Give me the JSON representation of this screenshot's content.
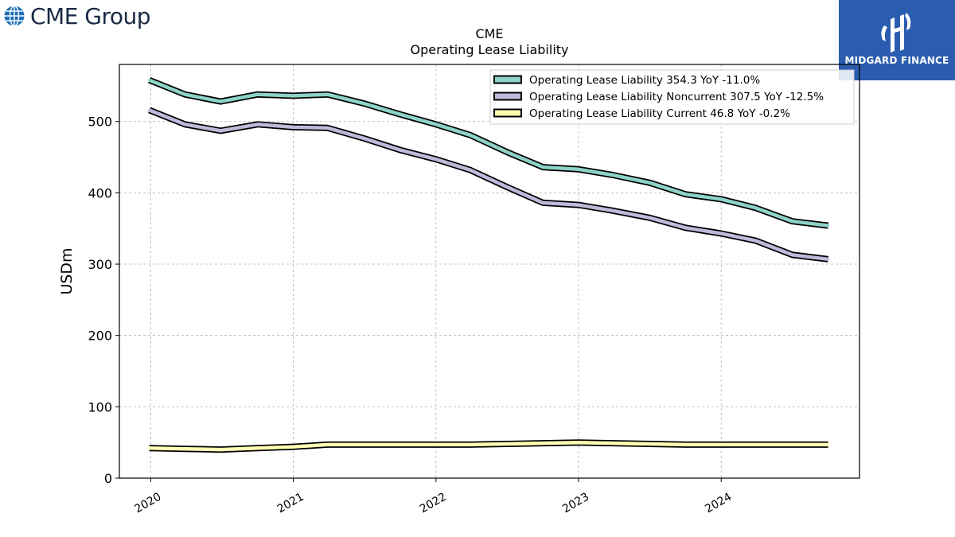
{
  "branding": {
    "left_logo_text": "CME Group",
    "right_logo_text": "MIDGARD FINANCE",
    "right_logo_bg": "#2a5db0"
  },
  "chart_data": {
    "type": "line",
    "title": "CME",
    "subtitle": "Operating Lease Liability",
    "ylabel": "USDm",
    "xlabel": "",
    "xlim": [
      2019.78,
      2024.97
    ],
    "ylim": [
      0,
      580
    ],
    "yticks": [
      0,
      100,
      200,
      300,
      400,
      500
    ],
    "xticks": [
      "2020",
      "2021",
      "2022",
      "2023",
      "2024"
    ],
    "grid": true,
    "legend_position": "top-right",
    "x": [
      2019.99,
      2020.24,
      2020.49,
      2020.75,
      2021.0,
      2021.24,
      2021.5,
      2021.75,
      2022.0,
      2022.24,
      2022.5,
      2022.75,
      2023.0,
      2023.24,
      2023.5,
      2023.75,
      2024.0,
      2024.24,
      2024.5,
      2024.75
    ],
    "series": [
      {
        "name": "Operating Lease Liability  354.3 YoY -11.0%",
        "color": "#8dd3c7",
        "values": [
          558,
          538,
          528,
          538,
          536,
          538,
          525,
          510,
          496,
          481,
          457,
          436,
          433,
          425,
          414,
          398,
          391,
          379,
          360,
          354
        ]
      },
      {
        "name": "Operating Lease Liability Noncurrent  307.5 YoY -12.5%",
        "color": "#bebada",
        "values": [
          516,
          496,
          487,
          496,
          492,
          491,
          476,
          460,
          447,
          432,
          408,
          386,
          383,
          375,
          365,
          351,
          343,
          333,
          313,
          307
        ]
      },
      {
        "name": "Operating Lease Liability Current  46.8 YoY -0.2%",
        "color": "#ffffb3",
        "values": [
          42,
          41,
          40,
          42,
          44,
          47,
          47,
          47,
          47,
          47,
          48,
          49,
          50,
          49,
          48,
          47,
          47,
          47,
          47,
          47
        ]
      }
    ]
  }
}
